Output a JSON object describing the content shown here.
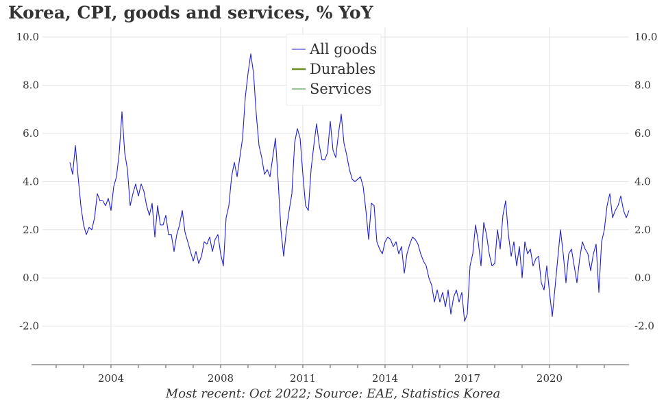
{
  "chart_data": {
    "type": "line",
    "title": "Korea, CPI, goods and services, % YoY",
    "note": "Most recent: Oct 2022; Source: EAE, Statistics Korea",
    "xlabel": "",
    "ylabel": "",
    "x_ticks": [
      "2004",
      "2008",
      "2011",
      "2014",
      "2017",
      "2020"
    ],
    "y_ticks": [
      "-2.0",
      "0.0",
      "2.0",
      "4.0",
      "6.0",
      "8.0",
      "10.0"
    ],
    "ylim": [
      -3.6,
      10.4
    ],
    "xlim": [
      2001.5,
      2022.9
    ],
    "grid": true,
    "legend_position": "top-center",
    "series": [
      {
        "name": "All goods",
        "color": "#1f1fd6",
        "points": [
          [
            2002.5,
            4.8
          ],
          [
            2002.6,
            4.3
          ],
          [
            2002.7,
            5.5
          ],
          [
            2002.8,
            4.2
          ],
          [
            2002.9,
            3.0
          ],
          [
            2003.0,
            2.2
          ],
          [
            2003.1,
            1.8
          ],
          [
            2003.2,
            2.1
          ],
          [
            2003.3,
            2.0
          ],
          [
            2003.4,
            2.5
          ],
          [
            2003.5,
            3.5
          ],
          [
            2003.6,
            3.2
          ],
          [
            2003.7,
            3.2
          ],
          [
            2003.8,
            3.0
          ],
          [
            2003.9,
            3.3
          ],
          [
            2004.0,
            2.8
          ],
          [
            2004.1,
            3.8
          ],
          [
            2004.2,
            4.2
          ],
          [
            2004.3,
            5.2
          ],
          [
            2004.4,
            6.9
          ],
          [
            2004.5,
            5.2
          ],
          [
            2004.6,
            4.5
          ],
          [
            2004.7,
            3.0
          ],
          [
            2004.8,
            3.5
          ],
          [
            2004.9,
            3.9
          ],
          [
            2005.0,
            3.4
          ],
          [
            2005.1,
            3.9
          ],
          [
            2005.2,
            3.6
          ],
          [
            2005.3,
            3.0
          ],
          [
            2005.4,
            2.6
          ],
          [
            2005.5,
            3.1
          ],
          [
            2005.6,
            1.7
          ],
          [
            2005.7,
            3.0
          ],
          [
            2005.8,
            2.2
          ],
          [
            2005.9,
            2.2
          ],
          [
            2006.0,
            2.6
          ],
          [
            2006.1,
            1.8
          ],
          [
            2006.2,
            1.8
          ],
          [
            2006.3,
            1.1
          ],
          [
            2006.4,
            1.8
          ],
          [
            2006.5,
            2.2
          ],
          [
            2006.6,
            2.8
          ],
          [
            2006.7,
            1.9
          ],
          [
            2006.8,
            1.5
          ],
          [
            2006.9,
            1.1
          ],
          [
            2007.0,
            0.7
          ],
          [
            2007.1,
            1.1
          ],
          [
            2007.2,
            0.6
          ],
          [
            2007.3,
            0.9
          ],
          [
            2007.4,
            1.5
          ],
          [
            2007.5,
            1.4
          ],
          [
            2007.6,
            1.7
          ],
          [
            2007.7,
            1.1
          ],
          [
            2007.8,
            1.6
          ],
          [
            2007.9,
            1.8
          ],
          [
            2008.0,
            1.0
          ],
          [
            2008.1,
            0.5
          ],
          [
            2008.2,
            2.5
          ],
          [
            2008.3,
            3.0
          ],
          [
            2008.4,
            4.2
          ],
          [
            2008.5,
            4.8
          ],
          [
            2008.6,
            4.2
          ],
          [
            2008.7,
            5.0
          ],
          [
            2008.8,
            5.8
          ],
          [
            2008.9,
            7.5
          ],
          [
            2009.0,
            8.5
          ],
          [
            2009.1,
            9.3
          ],
          [
            2009.2,
            8.5
          ],
          [
            2009.3,
            6.8
          ],
          [
            2009.4,
            5.5
          ],
          [
            2009.5,
            5.0
          ],
          [
            2009.6,
            4.3
          ],
          [
            2009.7,
            4.5
          ],
          [
            2009.8,
            4.2
          ],
          [
            2009.9,
            5.0
          ],
          [
            2010.0,
            5.8
          ],
          [
            2010.1,
            4.0
          ],
          [
            2010.2,
            2.0
          ],
          [
            2010.3,
            0.9
          ],
          [
            2010.4,
            2.0
          ],
          [
            2010.5,
            2.8
          ],
          [
            2010.6,
            3.5
          ],
          [
            2010.7,
            5.6
          ],
          [
            2010.8,
            6.2
          ],
          [
            2010.9,
            5.8
          ],
          [
            2011.0,
            4.3
          ],
          [
            2011.1,
            3.0
          ],
          [
            2011.2,
            2.8
          ],
          [
            2011.3,
            4.5
          ],
          [
            2011.4,
            5.5
          ],
          [
            2011.5,
            6.4
          ],
          [
            2011.6,
            5.5
          ],
          [
            2011.7,
            4.9
          ],
          [
            2011.8,
            4.9
          ],
          [
            2011.9,
            5.2
          ],
          [
            2012.0,
            6.5
          ],
          [
            2012.1,
            5.3
          ],
          [
            2012.2,
            5.0
          ],
          [
            2012.3,
            6.0
          ],
          [
            2012.4,
            6.8
          ],
          [
            2012.5,
            5.6
          ],
          [
            2012.6,
            5.1
          ],
          [
            2012.7,
            4.5
          ],
          [
            2012.8,
            4.1
          ],
          [
            2012.9,
            4.0
          ],
          [
            2013.0,
            4.1
          ],
          [
            2013.1,
            4.2
          ],
          [
            2013.2,
            3.8
          ],
          [
            2013.3,
            2.8
          ],
          [
            2013.4,
            1.6
          ],
          [
            2013.5,
            3.1
          ],
          [
            2013.6,
            3.0
          ],
          [
            2013.7,
            1.5
          ],
          [
            2013.8,
            1.2
          ],
          [
            2013.9,
            1.0
          ],
          [
            2014.0,
            1.5
          ],
          [
            2014.1,
            1.7
          ],
          [
            2014.2,
            1.6
          ],
          [
            2014.3,
            1.3
          ],
          [
            2014.4,
            1.5
          ],
          [
            2014.5,
            1.0
          ],
          [
            2014.6,
            1.3
          ],
          [
            2014.7,
            0.2
          ],
          [
            2014.8,
            1.0
          ],
          [
            2014.9,
            1.4
          ],
          [
            2015.0,
            1.7
          ],
          [
            2015.1,
            1.6
          ],
          [
            2015.2,
            1.4
          ],
          [
            2015.3,
            1.0
          ],
          [
            2015.4,
            0.7
          ],
          [
            2015.5,
            0.5
          ],
          [
            2015.6,
            0.0
          ],
          [
            2015.7,
            -0.3
          ],
          [
            2015.8,
            -1.0
          ],
          [
            2015.9,
            -0.5
          ],
          [
            2016.0,
            -1.0
          ],
          [
            2016.1,
            -0.6
          ],
          [
            2016.2,
            -1.2
          ],
          [
            2016.3,
            -0.5
          ],
          [
            2016.4,
            -1.5
          ],
          [
            2016.5,
            -0.8
          ],
          [
            2016.6,
            -0.5
          ],
          [
            2016.7,
            -1.0
          ],
          [
            2016.8,
            -0.6
          ],
          [
            2016.9,
            -1.8
          ],
          [
            2017.0,
            -1.5
          ],
          [
            2017.1,
            0.5
          ],
          [
            2017.2,
            1.0
          ],
          [
            2017.3,
            2.2
          ],
          [
            2017.4,
            1.5
          ],
          [
            2017.5,
            0.5
          ],
          [
            2017.6,
            2.3
          ],
          [
            2017.7,
            1.8
          ],
          [
            2017.8,
            1.0
          ],
          [
            2017.9,
            0.5
          ],
          [
            2018.0,
            0.6
          ],
          [
            2018.1,
            2.0
          ],
          [
            2018.2,
            1.2
          ],
          [
            2018.3,
            2.6
          ],
          [
            2018.4,
            3.2
          ],
          [
            2018.5,
            1.8
          ],
          [
            2018.6,
            0.9
          ],
          [
            2018.7,
            1.5
          ],
          [
            2018.8,
            0.5
          ],
          [
            2018.9,
            1.3
          ],
          [
            2019.0,
            0.0
          ],
          [
            2019.1,
            1.5
          ],
          [
            2019.2,
            1.0
          ],
          [
            2019.3,
            1.2
          ],
          [
            2019.4,
            0.5
          ],
          [
            2019.5,
            0.8
          ],
          [
            2019.6,
            0.9
          ],
          [
            2019.7,
            -0.2
          ],
          [
            2019.8,
            -0.5
          ],
          [
            2019.9,
            0.5
          ],
          [
            2020.0,
            -0.6
          ],
          [
            2020.1,
            -1.6
          ],
          [
            2020.2,
            -0.4
          ],
          [
            2020.3,
            0.8
          ],
          [
            2020.4,
            2.0
          ],
          [
            2020.5,
            1.0
          ],
          [
            2020.6,
            -0.2
          ],
          [
            2020.7,
            1.0
          ],
          [
            2020.8,
            1.2
          ],
          [
            2020.9,
            0.5
          ],
          [
            2021.0,
            -0.2
          ],
          [
            2021.1,
            0.8
          ],
          [
            2021.2,
            1.5
          ],
          [
            2021.3,
            1.2
          ],
          [
            2021.4,
            1.0
          ],
          [
            2021.5,
            0.3
          ],
          [
            2021.6,
            1.0
          ],
          [
            2021.7,
            1.4
          ],
          [
            2021.8,
            -0.6
          ],
          [
            2021.9,
            1.5
          ],
          [
            2022.0,
            2.0
          ],
          [
            2022.1,
            3.0
          ],
          [
            2022.2,
            3.5
          ],
          [
            2022.3,
            2.5
          ],
          [
            2022.4,
            2.8
          ],
          [
            2022.5,
            3.0
          ],
          [
            2022.6,
            3.4
          ],
          [
            2022.7,
            2.8
          ],
          [
            2022.8,
            2.5
          ],
          [
            2022.9,
            2.8
          ]
        ]
      },
      {
        "name": "Durables",
        "color": "#6b8e23",
        "points": []
      },
      {
        "name": "Services",
        "color": "#2e8b2e",
        "points": []
      }
    ]
  }
}
